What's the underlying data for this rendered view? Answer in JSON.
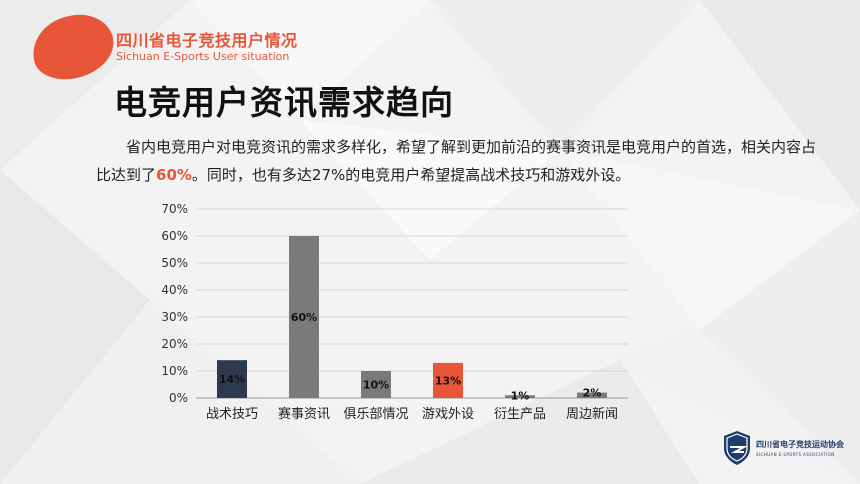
{
  "header": {
    "title": "四川省电子竞技用户情况",
    "subtitle": "Sichuan E-Sports User situation"
  },
  "main_title": "电竞用户资讯需求趋向",
  "description": {
    "part1": "省内电竞用户对电竞资讯的需求多样化，希望了解到更加前沿的赛事资讯是电竞用户的首选，相关内容占比达到了",
    "highlight": "60%",
    "part2": "。同时，也有多达27%的电竞用户希望提高战术技巧和游戏外设。"
  },
  "colors": {
    "accent": "#e8563a",
    "navy": "#2d3a4d",
    "gray": "#7a7a7a",
    "text": "#222222"
  },
  "chart_data": {
    "type": "bar",
    "categories": [
      "战术技巧",
      "赛事资讯",
      "俱乐部情况",
      "游戏外设",
      "衍生产品",
      "周边新闻"
    ],
    "values": [
      14,
      60,
      10,
      13,
      1,
      2
    ],
    "data_labels": [
      "14%",
      "60%",
      "10%",
      "13%",
      "1%",
      "2%"
    ],
    "bar_colors": [
      "#2d3a4d",
      "#7a7a7a",
      "#7a7a7a",
      "#e8563a",
      "#7a7a7a",
      "#7a7a7a"
    ],
    "yticks": [
      "0%",
      "10%",
      "20%",
      "30%",
      "40%",
      "50%",
      "60%",
      "70%"
    ],
    "ylim": [
      0,
      70
    ],
    "grid": true,
    "legend": "none"
  },
  "logo": {
    "icon": "esports-association-shield-icon",
    "name_cn": "四川省电子竞技运动协会",
    "name_en": "SICHUAN E-SPORTS ASSOCIATION"
  }
}
